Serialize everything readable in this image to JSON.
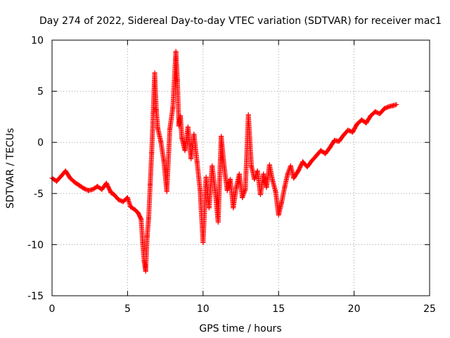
{
  "chart_data": {
    "type": "scatter",
    "title": "Day 274 of 2022, Sidereal Day-to-day VTEC variation (SDTVAR) for receiver mac1",
    "xlabel": "GPS time / hours",
    "ylabel": "SDTVAR / TECUs",
    "xlim": [
      0,
      25
    ],
    "ylim": [
      -15,
      10
    ],
    "xticks": [
      0,
      5,
      10,
      15,
      20,
      25
    ],
    "yticks": [
      -15,
      -10,
      -5,
      0,
      5,
      10
    ],
    "xtick_labels": [
      "0",
      "5",
      "10",
      "15",
      "20",
      "25"
    ],
    "ytick_labels": [
      "-15",
      "-10",
      "-5",
      "0",
      "5",
      "10"
    ],
    "grid": true,
    "marker": "+",
    "series": [
      {
        "name": "SDTVAR",
        "color": "#ff0000",
        "x": [
          0.0,
          0.3,
          0.6,
          0.9,
          1.2,
          1.5,
          1.8,
          2.1,
          2.4,
          2.7,
          3.0,
          3.3,
          3.6,
          3.9,
          4.1,
          4.4,
          4.7,
          5.0,
          5.2,
          5.5,
          5.7,
          5.9,
          6.0,
          6.1,
          6.2,
          6.3,
          6.4,
          6.5,
          6.6,
          6.7,
          6.8,
          6.9,
          7.0,
          7.2,
          7.4,
          7.6,
          7.8,
          8.0,
          8.2,
          8.3,
          8.4,
          8.5,
          8.6,
          8.8,
          9.0,
          9.2,
          9.4,
          9.6,
          9.8,
          10.0,
          10.2,
          10.4,
          10.6,
          10.8,
          11.0,
          11.2,
          11.4,
          11.6,
          11.8,
          12.0,
          12.2,
          12.4,
          12.6,
          12.8,
          13.0,
          13.2,
          13.4,
          13.6,
          13.8,
          14.0,
          14.2,
          14.4,
          14.6,
          14.8,
          15.0,
          15.2,
          15.4,
          15.6,
          15.8,
          16.0,
          16.3,
          16.6,
          16.9,
          17.2,
          17.5,
          17.8,
          18.1,
          18.4,
          18.7,
          19.0,
          19.3,
          19.6,
          19.9,
          20.2,
          20.5,
          20.8,
          21.1,
          21.4,
          21.7,
          22.0,
          22.3,
          22.6,
          22.8
        ],
        "y": [
          -3.5,
          -3.8,
          -3.3,
          -2.8,
          -3.5,
          -3.9,
          -4.2,
          -4.5,
          -4.7,
          -4.6,
          -4.3,
          -4.6,
          -4.0,
          -4.9,
          -5.1,
          -5.6,
          -5.8,
          -5.4,
          -6.3,
          -6.6,
          -6.9,
          -7.5,
          -9.8,
          -11.6,
          -12.6,
          -9.2,
          -7.4,
          -4.1,
          -1.0,
          2.9,
          6.8,
          3.2,
          1.4,
          0.1,
          -1.8,
          -4.8,
          1.3,
          3.4,
          8.9,
          6.1,
          1.6,
          2.6,
          0.4,
          -0.8,
          1.5,
          -1.6,
          0.8,
          -1.9,
          -4.6,
          -9.8,
          -3.4,
          -6.4,
          -2.3,
          -4.7,
          -7.8,
          0.6,
          -2.4,
          -4.7,
          -3.6,
          -6.4,
          -4.4,
          -3.1,
          -5.4,
          -4.6,
          2.7,
          -2.3,
          -3.6,
          -2.8,
          -5.1,
          -3.1,
          -4.4,
          -2.2,
          -3.7,
          -4.8,
          -7.1,
          -5.9,
          -4.4,
          -3.1,
          -2.3,
          -3.5,
          -2.8,
          -1.9,
          -2.4,
          -1.8,
          -1.3,
          -0.8,
          -1.1,
          -0.5,
          0.2,
          0.1,
          0.7,
          1.2,
          1.0,
          1.8,
          2.2,
          1.9,
          2.6,
          3.0,
          2.8,
          3.3,
          3.5,
          3.6,
          3.7
        ]
      }
    ]
  }
}
